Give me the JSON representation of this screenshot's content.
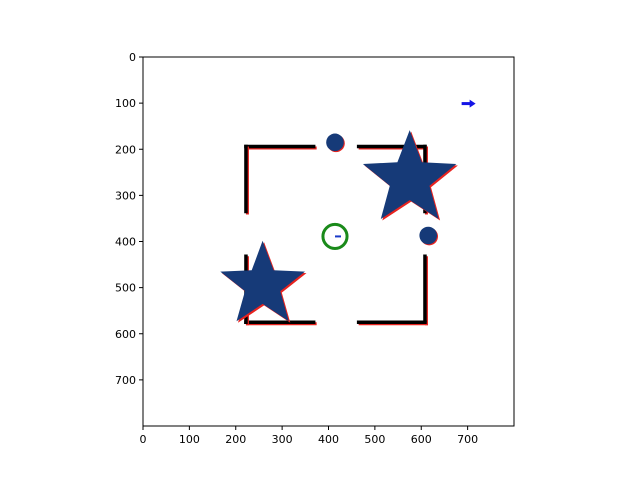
{
  "figure": {
    "background": "#ffffff"
  },
  "axes": {
    "xlim": [
      0,
      800
    ],
    "ylim": [
      0,
      800
    ],
    "y_inverted": true,
    "x_ticks": [
      "0",
      "100",
      "200",
      "300",
      "400",
      "500",
      "600",
      "700"
    ],
    "y_ticks": [
      "0",
      "100",
      "200",
      "300",
      "400",
      "500",
      "600",
      "700"
    ],
    "frame_color": "#000000"
  },
  "scene": {
    "walls": [
      {
        "name": "wall-top-left-horizontal",
        "x1": 222,
        "y1": 194,
        "x2": 368,
        "y2": 194
      },
      {
        "name": "wall-left-upper-vertical",
        "x1": 222,
        "y1": 194,
        "x2": 222,
        "y2": 335
      },
      {
        "name": "wall-top-right-horizontal",
        "x1": 465,
        "y1": 194,
        "x2": 608,
        "y2": 194
      },
      {
        "name": "wall-right-upper-vertical",
        "x1": 608,
        "y1": 194,
        "x2": 608,
        "y2": 335
      },
      {
        "name": "wall-right-lower-vertical",
        "x1": 608,
        "y1": 432,
        "x2": 608,
        "y2": 575
      },
      {
        "name": "wall-bottom-right-horizontal",
        "x1": 465,
        "y1": 575,
        "x2": 608,
        "y2": 575
      },
      {
        "name": "wall-bottom-left-horizontal",
        "x1": 222,
        "y1": 575,
        "x2": 368,
        "y2": 575
      },
      {
        "name": "wall-left-lower-vertical",
        "x1": 222,
        "y1": 432,
        "x2": 222,
        "y2": 575
      }
    ],
    "wall_color": "#000000",
    "wall_edge_color": "#e8231f",
    "stars": [
      {
        "name": "star-top-right",
        "cx": 575,
        "cy": 265,
        "outer_r": 106,
        "inner_r": 45
      },
      {
        "name": "star-bottom-left",
        "cx": 258,
        "cy": 495,
        "outer_r": 96,
        "inner_r": 40
      }
    ],
    "circles": [
      {
        "name": "circle-obstacle-top",
        "cx": 414,
        "cy": 185,
        "r": 19
      },
      {
        "name": "circle-obstacle-right",
        "cx": 615,
        "cy": 387,
        "r": 19
      }
    ],
    "obstacle_color": "#163a78",
    "agent": {
      "cx": 414,
      "cy": 389,
      "r": 26,
      "ring_color": "#1a8a1a",
      "heading_color": "#1a3ac8"
    },
    "goal_arrow": {
      "x": 700,
      "y": 101,
      "color": "#1414e6"
    }
  }
}
